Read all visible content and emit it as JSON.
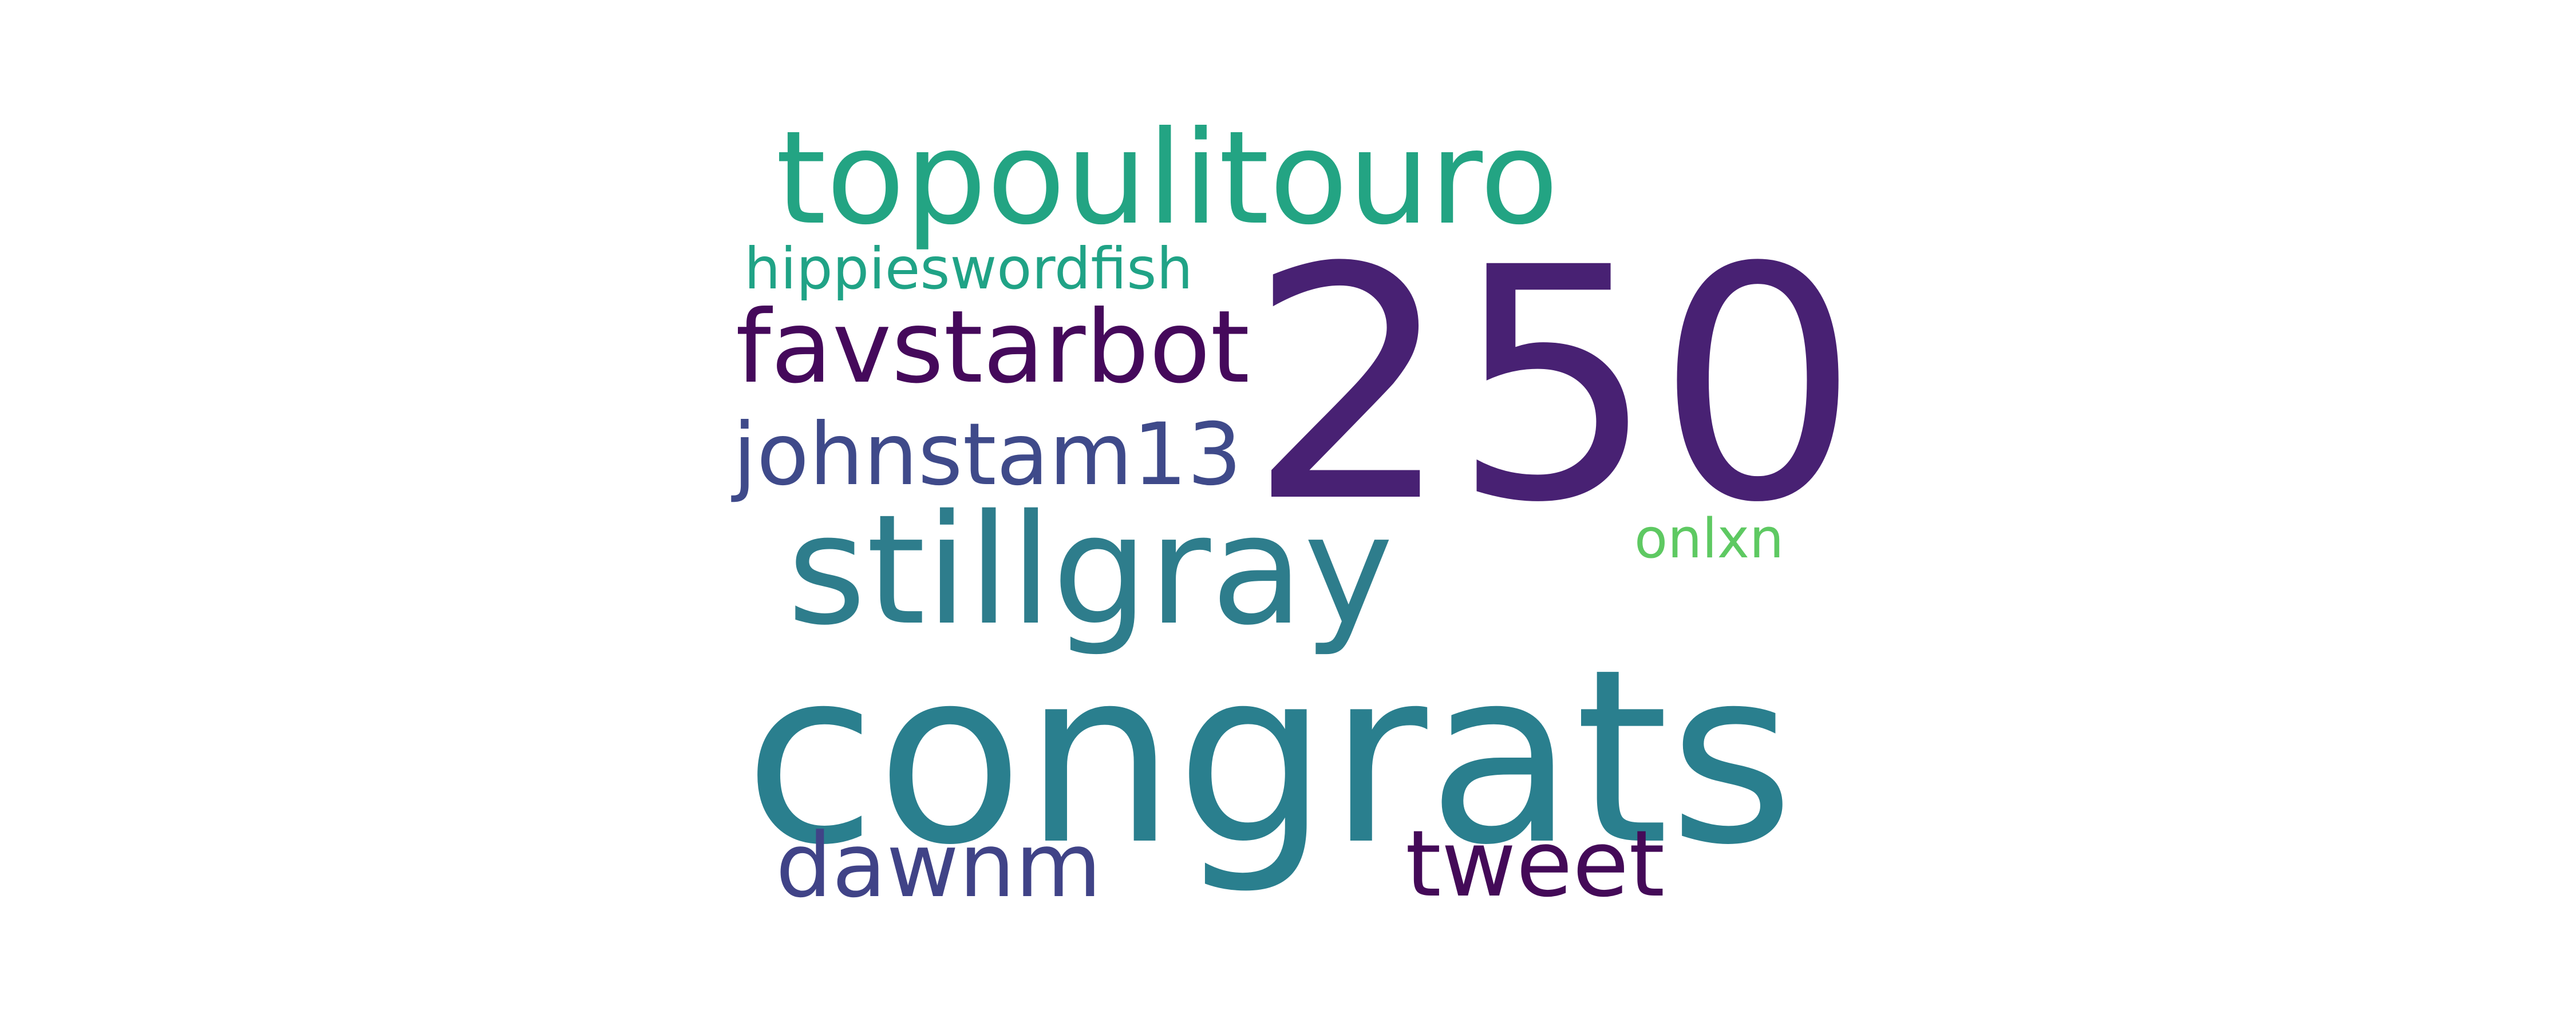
{
  "words": [
    {
      "text": "250",
      "color": "#482173"
    },
    {
      "text": "congrats",
      "color": "#2a7f8e"
    },
    {
      "text": "stillgray",
      "color": "#2e7d8c"
    },
    {
      "text": "topoulitouro",
      "color": "#23a483"
    },
    {
      "text": "favstarbot",
      "color": "#45095b"
    },
    {
      "text": "johnstam13",
      "color": "#3f4a8a"
    },
    {
      "text": "dawnm",
      "color": "#404387"
    },
    {
      "text": "tweet",
      "color": "#440a58"
    },
    {
      "text": "hippieswordfish",
      "color": "#20a386"
    },
    {
      "text": "onlxn",
      "color": "#5ec962"
    }
  ]
}
